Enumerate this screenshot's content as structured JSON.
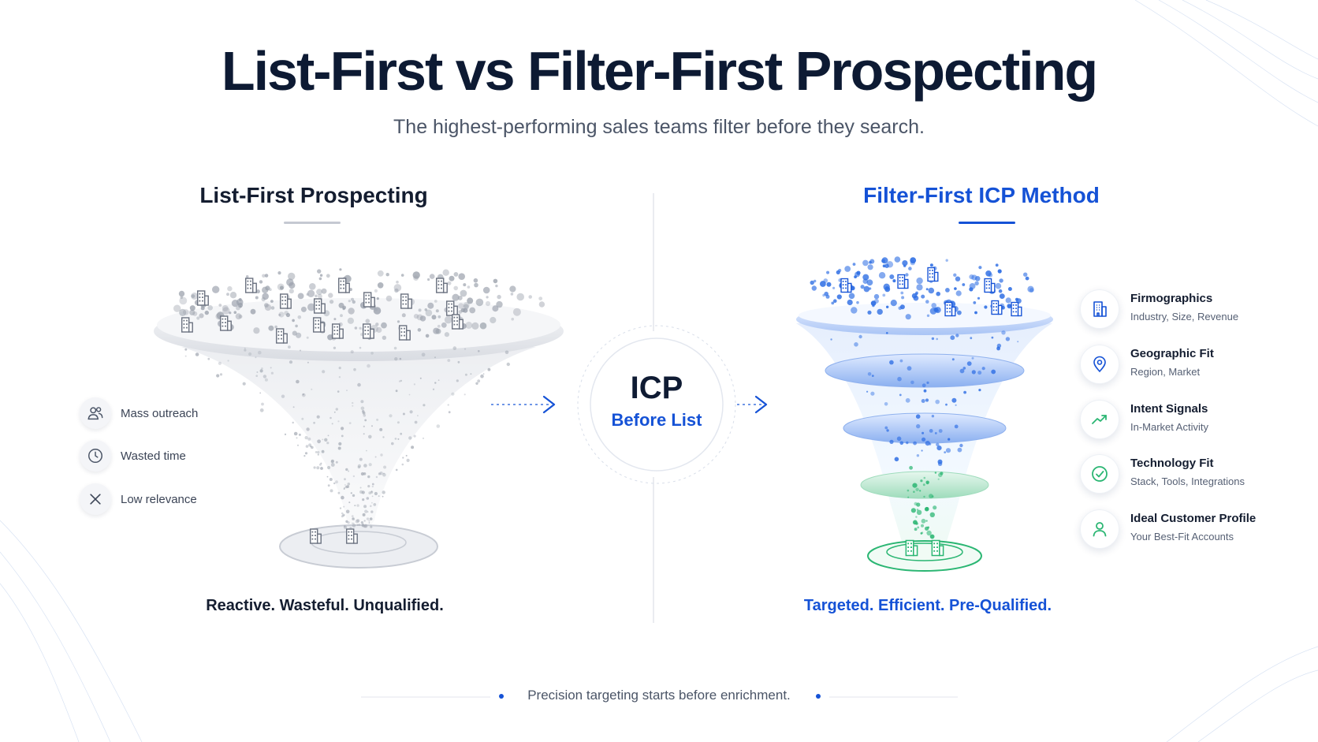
{
  "title": "List-First vs Filter-First Prospecting",
  "subtitle": "The highest-performing sales teams filter before they search.",
  "left_column": {
    "heading": "List-First Prospecting",
    "issues": [
      {
        "label": "Mass outreach",
        "icon": "users-icon"
      },
      {
        "label": "Wasted time",
        "icon": "clock-icon"
      },
      {
        "label": "Low relevance",
        "icon": "x-icon"
      }
    ],
    "tagline": "Reactive. Wasteful. Unqualified."
  },
  "center": {
    "main": "ICP",
    "sub": "Before List"
  },
  "right_column": {
    "heading": "Filter-First ICP Method",
    "features": [
      {
        "title": "Firmographics",
        "subtitle": "Industry, Size, Revenue",
        "icon": "building-icon"
      },
      {
        "title": "Geographic Fit",
        "subtitle": "Region, Market",
        "icon": "map-pin-icon"
      },
      {
        "title": "Intent Signals",
        "subtitle": "In-Market Activity",
        "icon": "trend-up-icon"
      },
      {
        "title": "Technology Fit",
        "subtitle": "Stack, Tools, Integrations",
        "icon": "check-circle-icon"
      },
      {
        "title": "Ideal Customer Profile",
        "subtitle": "Your Best-Fit Accounts",
        "icon": "user-icon"
      }
    ],
    "tagline": "Targeted. Efficient. Pre-Qualified."
  },
  "footer": "Precision targeting starts before enrichment.",
  "colors": {
    "accent_blue": "#1552d6",
    "dark_text": "#0d1a33",
    "green": "#2bb673",
    "gray": "#9aa0ab"
  }
}
